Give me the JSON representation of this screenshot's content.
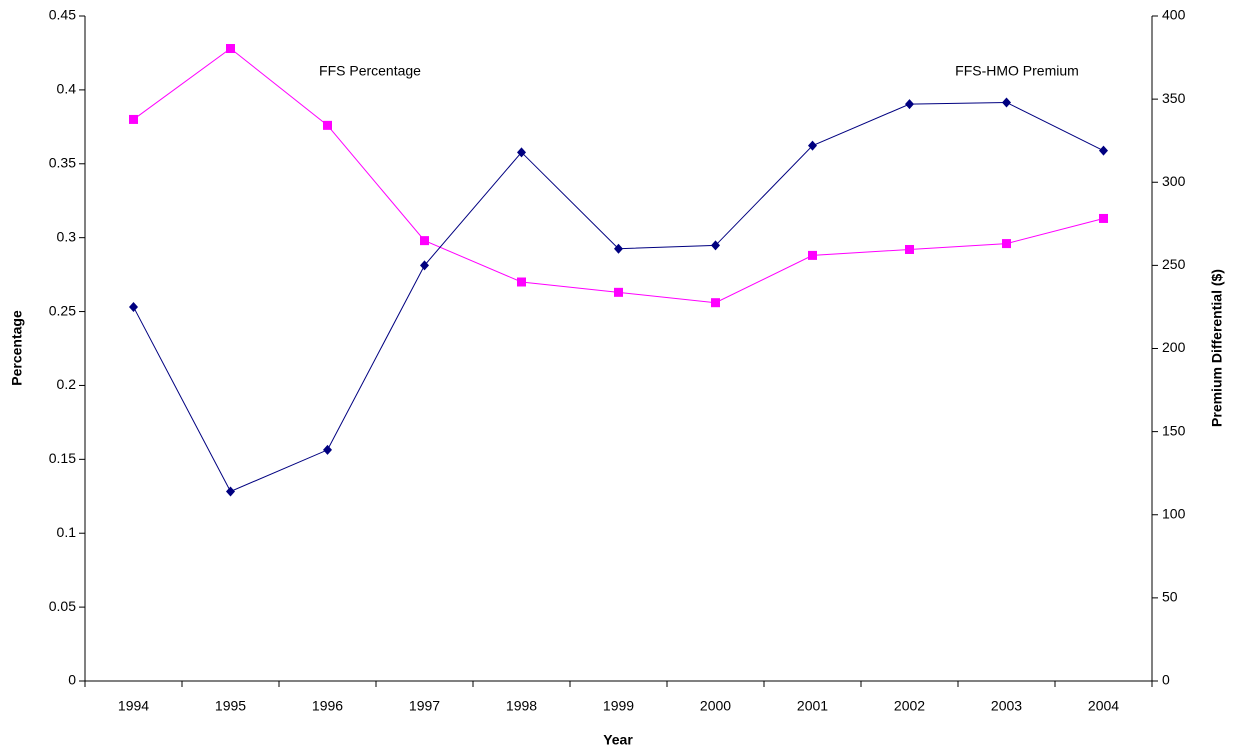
{
  "chart_data": {
    "type": "line",
    "categories": [
      "1994",
      "1995",
      "1996",
      "1997",
      "1998",
      "1999",
      "2000",
      "2001",
      "2002",
      "2003",
      "2004"
    ],
    "series": [
      {
        "name": "FFS Percentage",
        "color": "#ff00ff",
        "marker": "square",
        "values": [
          0.38,
          0.428,
          0.376,
          0.298,
          0.27,
          0.263,
          0.256,
          0.288,
          0.292,
          0.296,
          0.313
        ]
      },
      {
        "name": "FFS-HMO Premium",
        "color": "#000080",
        "marker": "diamond",
        "axis": "y2",
        "values": [
          225,
          114,
          139,
          250,
          318,
          260,
          262,
          322,
          347,
          348,
          319
        ]
      }
    ],
    "x_label": "Year",
    "y_label": "Percentage",
    "y2_label": "Premium Differential ($)",
    "ylim": [
      0,
      0.45
    ],
    "yticks": [
      0,
      0.05,
      0.1,
      0.15,
      0.2,
      0.25,
      0.3,
      0.35,
      0.4,
      0.45
    ],
    "y2lim": [
      0,
      400
    ],
    "y2ticks": [
      0,
      50,
      100,
      150,
      200,
      250,
      300,
      350,
      400
    ],
    "grid": false
  }
}
